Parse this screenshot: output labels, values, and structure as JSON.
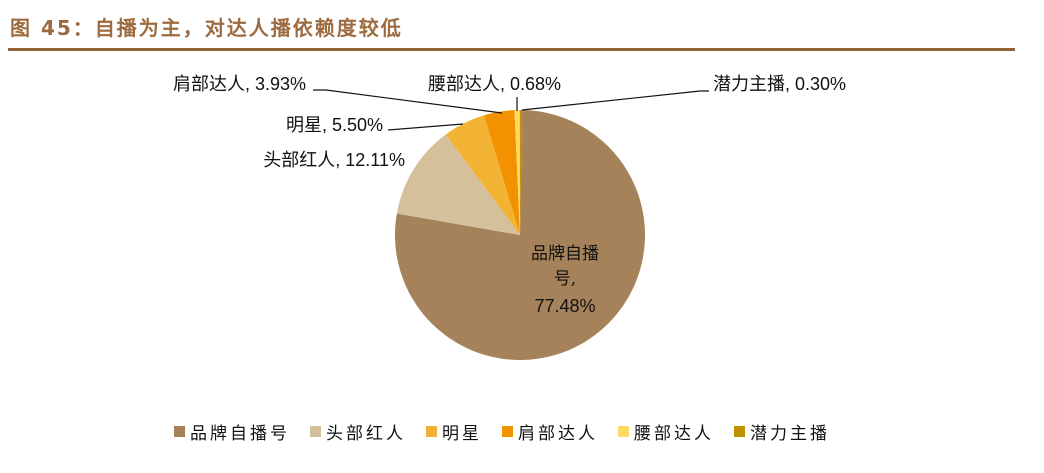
{
  "header": {
    "title": "图 45：自播为主，对达人播依赖度较低"
  },
  "chart_data": {
    "type": "pie",
    "title": "图 45：自播为主，对达人播依赖度较低",
    "categories": [
      "品牌自播号",
      "头部红人",
      "明星",
      "肩部达人",
      "腰部达人",
      "潜力主播"
    ],
    "values": [
      77.48,
      12.11,
      5.5,
      3.93,
      0.68,
      0.3
    ],
    "unit": "%",
    "colors": [
      "#A6825A",
      "#D4C19C",
      "#F2B233",
      "#F39200",
      "#FFD966",
      "#BF9000"
    ],
    "data_labels": [
      {
        "name": "品牌自播号",
        "value": "77.48%"
      },
      {
        "name": "头部红人",
        "value": "12.11%"
      },
      {
        "name": "明星",
        "value": "5.50%"
      },
      {
        "name": "肩部达人",
        "value": "3.93%"
      },
      {
        "name": "腰部达人",
        "value": "0.68%"
      },
      {
        "name": "潜力主播",
        "value": "0.30%"
      }
    ],
    "start_angle_deg": 1,
    "direction": "clockwise",
    "legend_position": "bottom"
  },
  "labels": {
    "brand_line1": "品牌自播",
    "brand_line2": "号,",
    "brand_value": "77.48%",
    "top_kol": "头部红人, 12.11%",
    "star": "明星, 5.50%",
    "shoulder": "肩部达人, 3.93%",
    "waist": "腰部达人, 0.68%",
    "potential": "潜力主播, 0.30%"
  },
  "legend": [
    {
      "label": "品牌自播号",
      "color": "#A6825A"
    },
    {
      "label": "头部红人",
      "color": "#D4C19C"
    },
    {
      "label": "明星",
      "color": "#F2B233"
    },
    {
      "label": "肩部达人",
      "color": "#F39200"
    },
    {
      "label": "腰部达人",
      "color": "#FFD966"
    },
    {
      "label": "潜力主播",
      "color": "#BF9000"
    }
  ]
}
